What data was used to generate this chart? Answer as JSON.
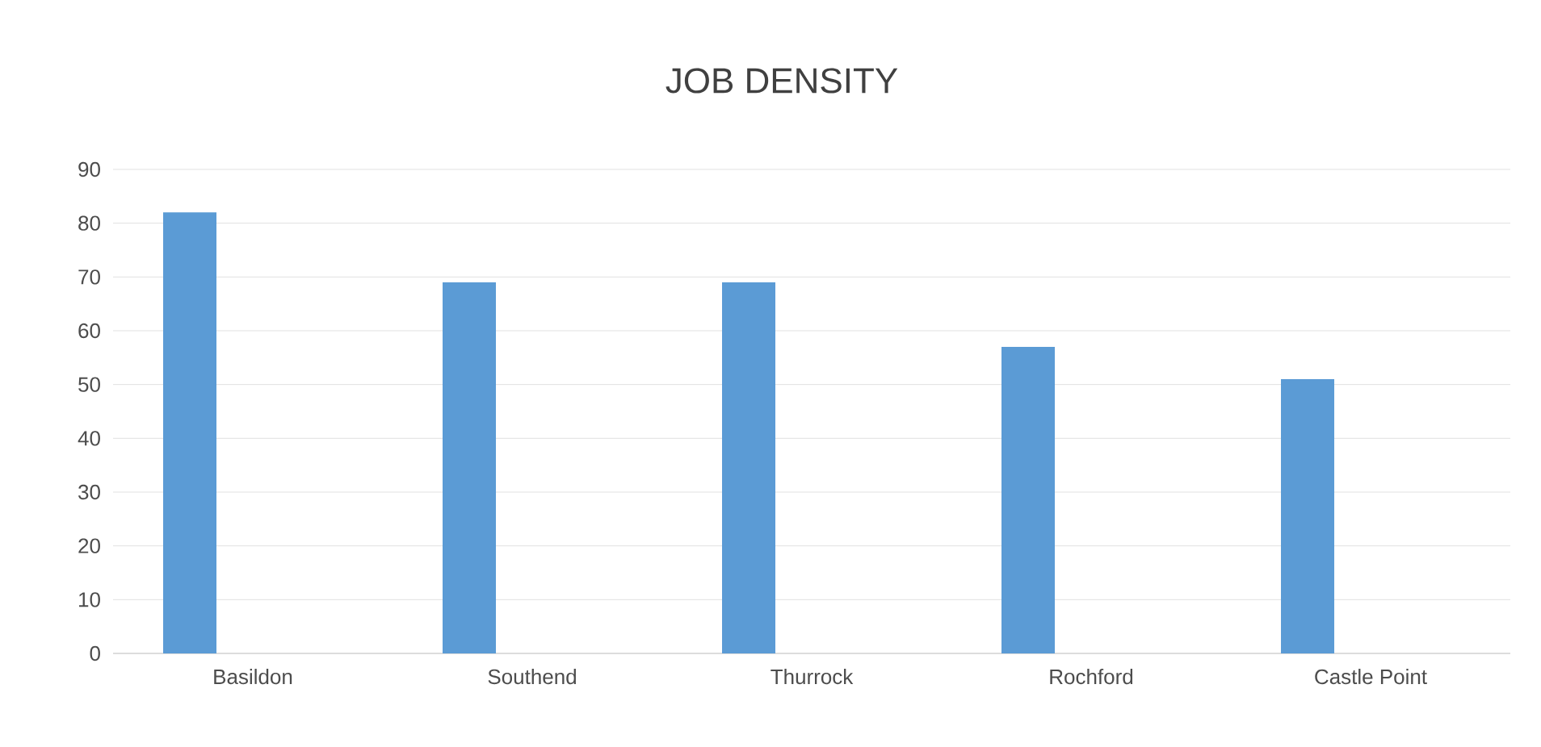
{
  "chart_data": {
    "type": "bar",
    "title": "JOB DENSITY",
    "categories": [
      "Basildon",
      "Southend",
      "Thurrock",
      "Rochford",
      "Castle Point"
    ],
    "values": [
      82,
      69,
      69,
      57,
      51
    ],
    "color": "#5b9bd5",
    "ylim": [
      0,
      90
    ],
    "yticks": [
      0,
      10,
      20,
      30,
      40,
      50,
      60,
      70,
      80,
      90
    ],
    "grid": "y"
  }
}
